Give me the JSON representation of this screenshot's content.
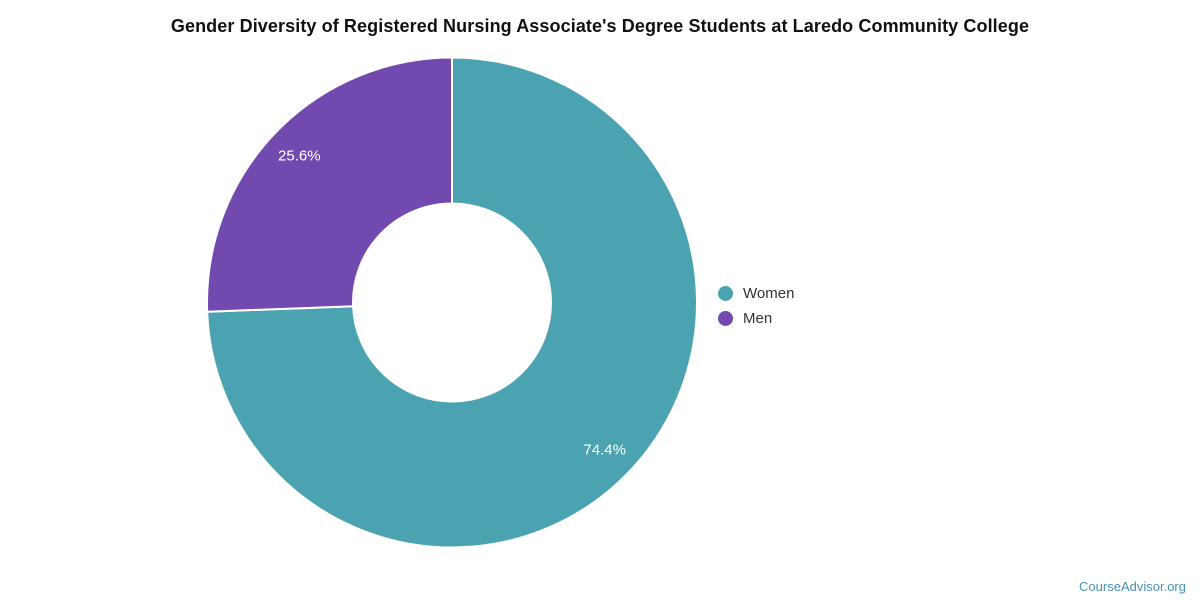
{
  "chart_data": {
    "type": "pie",
    "subtype": "donut",
    "title": "Gender Diversity of Registered Nursing Associate's Degree Students at Laredo Community College",
    "slices": [
      {
        "label": "Women",
        "value": 74.4,
        "display": "74.4%",
        "color": "#4ba3b1"
      },
      {
        "label": "Men",
        "value": 25.6,
        "display": "25.6%",
        "color": "#7249ae"
      }
    ],
    "start_angle_deg": -90,
    "direction": "clockwise",
    "inner_radius_ratio": 0.4,
    "legend_position": "right",
    "slice_label_color": "#ffffff",
    "separator_color": "#ffffff"
  },
  "footer": {
    "watermark": "CourseAdvisor.org",
    "color": "#4a90b8"
  }
}
